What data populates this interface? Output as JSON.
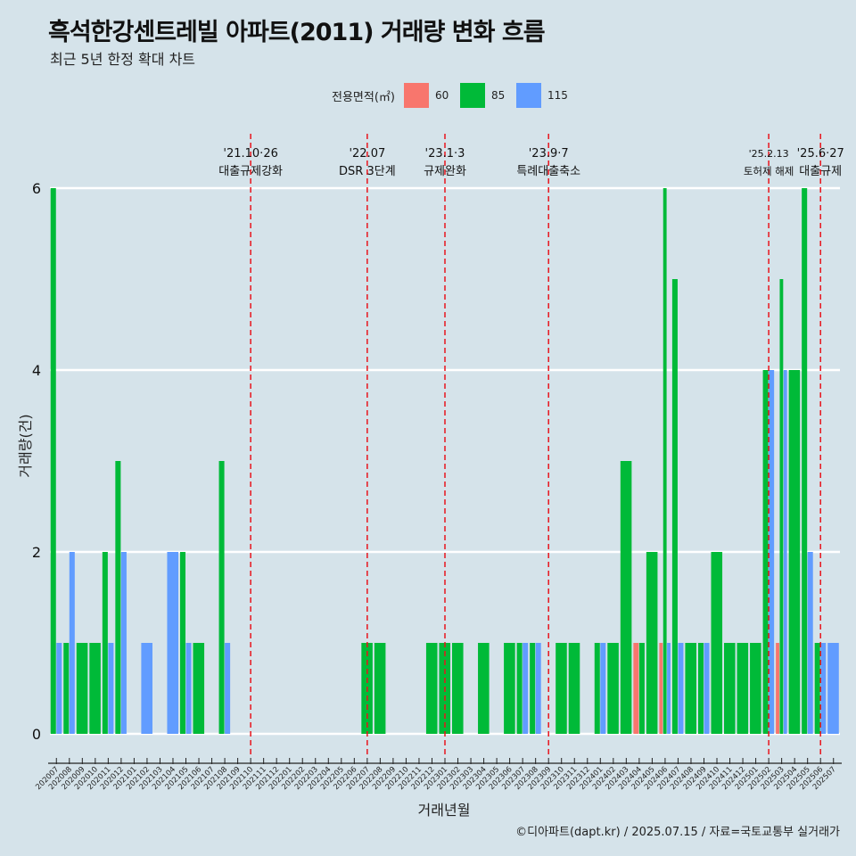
{
  "title": "흑석한강센트레빌 아파트(2011) 거래량 변화 흐름",
  "subtitle": "최근 5년 한정 확대 차트",
  "caption": "©디아파트(dapt.kr) / 2025.07.15 / 자료=국토교통부 실거래가",
  "legend": {
    "title": "전용면적(㎡)",
    "items": [
      {
        "label": "60",
        "color": "#f8766d"
      },
      {
        "label": "85",
        "color": "#00ba38"
      },
      {
        "label": "115",
        "color": "#619cff"
      }
    ]
  },
  "chart_data": {
    "type": "bar",
    "xlabel": "거래년월",
    "ylabel": "거래량(건)",
    "ylim": [
      0,
      6
    ],
    "yticks": [
      "0",
      "2",
      "4",
      "6"
    ],
    "grid": true,
    "legend_position": "top",
    "categories": [
      "202007",
      "202008",
      "202009",
      "202010",
      "202011",
      "202012",
      "202101",
      "202102",
      "202103",
      "202104",
      "202105",
      "202106",
      "202107",
      "202108",
      "202109",
      "202110",
      "202111",
      "202112",
      "202201",
      "202202",
      "202203",
      "202204",
      "202205",
      "202206",
      "202207",
      "202208",
      "202209",
      "202210",
      "202211",
      "202212",
      "202301",
      "202302",
      "202303",
      "202304",
      "202305",
      "202306",
      "202307",
      "202308",
      "202309",
      "202310",
      "202311",
      "202312",
      "202401",
      "202402",
      "202403",
      "202404",
      "202405",
      "202406",
      "202407",
      "202408",
      "202409",
      "202410",
      "202411",
      "202412",
      "202501",
      "202502",
      "202503",
      "202504",
      "202505",
      "202506",
      "202507"
    ],
    "series": [
      {
        "name": "60",
        "color": "#f8766d",
        "values": [
          0,
          0,
          0,
          0,
          0,
          0,
          0,
          0,
          0,
          0,
          0,
          0,
          0,
          0,
          0,
          0,
          0,
          0,
          0,
          0,
          0,
          0,
          0,
          0,
          0,
          0,
          0,
          0,
          0,
          0,
          0,
          0,
          0,
          0,
          0,
          0,
          0,
          0,
          0,
          0,
          0,
          0,
          0,
          0,
          0,
          1,
          0,
          1,
          0,
          0,
          0,
          0,
          0,
          0,
          0,
          0,
          1,
          0,
          0,
          0,
          0
        ]
      },
      {
        "name": "85",
        "color": "#00ba38",
        "values": [
          6,
          1,
          1,
          1,
          2,
          3,
          0,
          0,
          0,
          0,
          2,
          1,
          0,
          3,
          0,
          0,
          0,
          0,
          0,
          0,
          0,
          0,
          0,
          0,
          1,
          1,
          0,
          0,
          0,
          1,
          1,
          1,
          0,
          1,
          0,
          1,
          1,
          1,
          0,
          1,
          1,
          0,
          1,
          1,
          3,
          1,
          2,
          6,
          5,
          1,
          1,
          2,
          1,
          1,
          1,
          4,
          5,
          4,
          6,
          1,
          0
        ]
      },
      {
        "name": "115",
        "color": "#619cff",
        "values": [
          1,
          2,
          0,
          0,
          1,
          2,
          0,
          1,
          0,
          2,
          1,
          0,
          0,
          1,
          0,
          0,
          0,
          0,
          0,
          0,
          0,
          0,
          0,
          0,
          0,
          0,
          0,
          0,
          0,
          0,
          0,
          0,
          0,
          0,
          0,
          0,
          1,
          1,
          0,
          0,
          0,
          0,
          1,
          0,
          0,
          0,
          0,
          1,
          1,
          0,
          1,
          0,
          0,
          0,
          0,
          4,
          4,
          0,
          2,
          1,
          1
        ]
      }
    ],
    "annotations": [
      {
        "month": "202110",
        "date": "'21.10·26",
        "label": "대출규제강화"
      },
      {
        "month": "202207",
        "date": "'22.07",
        "label": "DSR 3단계"
      },
      {
        "month": "202301",
        "date": "'23.1·3",
        "label": "규제완화"
      },
      {
        "month": "202309",
        "date": "'23.9·7",
        "label": "특례대출축소"
      },
      {
        "month": "202502",
        "date": "'25.2.13",
        "label": "토허제 해제"
      },
      {
        "month": "202506",
        "date": "'25.6·27",
        "label": "대출규제"
      }
    ]
  }
}
